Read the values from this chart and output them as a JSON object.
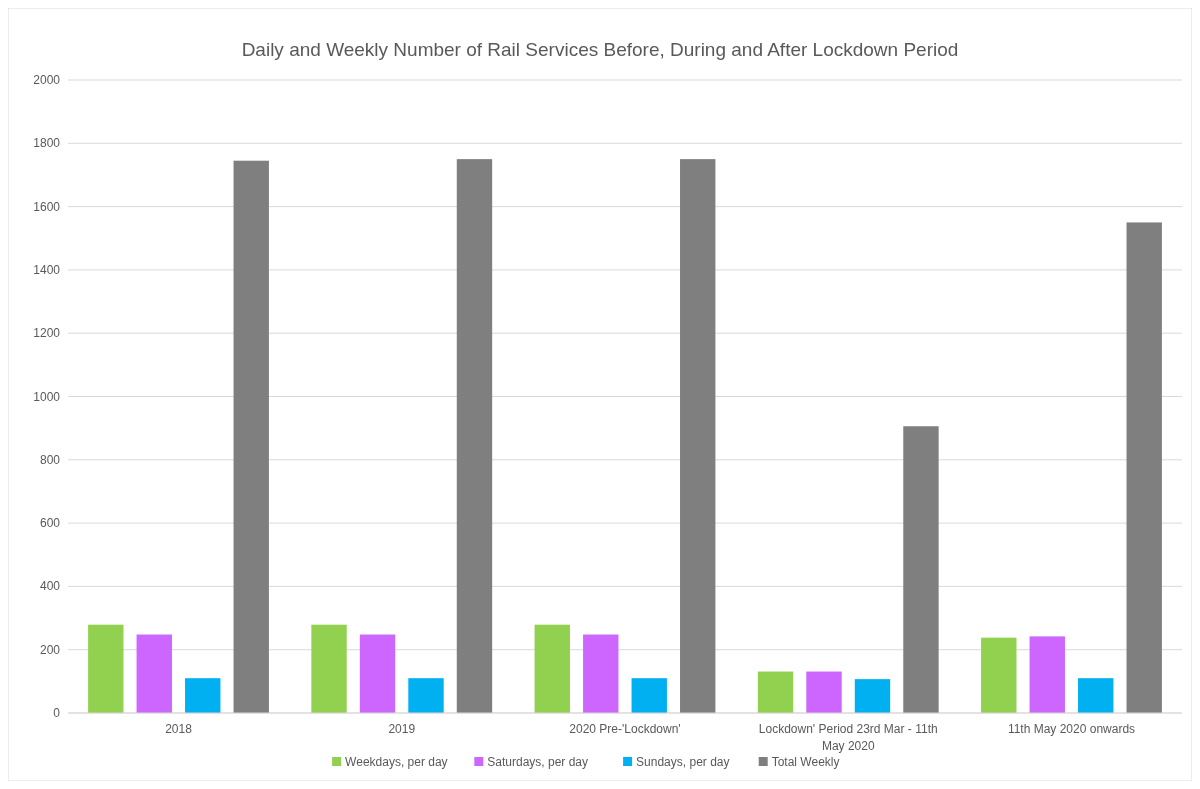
{
  "chart_data": {
    "type": "bar",
    "title": "Daily and Weekly Number of Rail Services Before, During and After Lockdown Period",
    "categories": [
      "2018",
      "2019",
      "2020 Pre-'Lockdown'",
      "Lockdown' Period 23rd Mar - 11th May 2020",
      "11th May 2020 onwards"
    ],
    "series": [
      {
        "name": "Weekdays, per day",
        "color": "#92d050",
        "values": [
          279,
          279,
          279,
          131,
          238
        ]
      },
      {
        "name": "Saturdays, per day",
        "color": "#cc66ff",
        "values": [
          248,
          248,
          248,
          131,
          242
        ]
      },
      {
        "name": "Sundays, per day",
        "color": "#00b0f0",
        "values": [
          110,
          110,
          110,
          107,
          110
        ]
      },
      {
        "name": "Total Weekly",
        "color": "#7f7f7f",
        "values": [
          1745,
          1750,
          1750,
          906,
          1550
        ]
      }
    ],
    "ylim": [
      0,
      2000
    ],
    "yticks": [
      0,
      200,
      400,
      600,
      800,
      1000,
      1200,
      1400,
      1600,
      1800,
      2000
    ],
    "grid": "y",
    "legend": "bottom"
  }
}
